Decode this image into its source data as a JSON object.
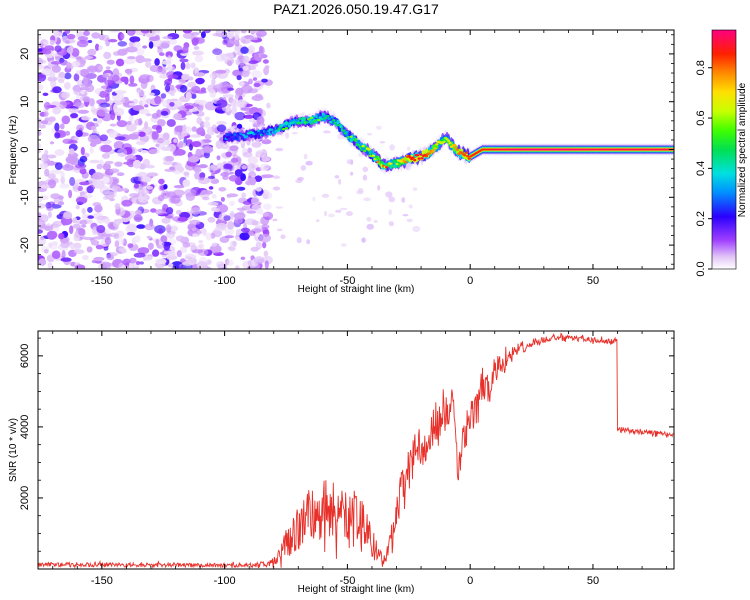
{
  "title": "PAZ1.2026.050.19.47.G17",
  "chart_data": [
    {
      "type": "heatmap",
      "name": "spectrogram",
      "xlabel": "Height of straight line (km)",
      "ylabel": "Frequency (Hz)",
      "xlim": [
        -176,
        83
      ],
      "ylim": [
        -25,
        25
      ],
      "xticks": [
        -150,
        -100,
        -50,
        0,
        50
      ],
      "yticks": [
        -20,
        -10,
        0,
        10,
        20
      ],
      "noise_region_x": [
        -176,
        -82
      ],
      "ridge": {
        "x": [
          -100,
          -90,
          -80,
          -75,
          -70,
          -65,
          -60,
          -55,
          -50,
          -45,
          -40,
          -35,
          -30,
          -25,
          -20,
          -15,
          -10,
          -5,
          0,
          5,
          10,
          20,
          30,
          40,
          50,
          60,
          70,
          83
        ],
        "freq": [
          2.5,
          3,
          4,
          5,
          6,
          6,
          7,
          6,
          3,
          1,
          -1,
          -3.5,
          -3,
          -2,
          -1.5,
          0,
          2.5,
          -0.5,
          -1.5,
          0,
          0,
          0,
          0,
          0,
          0,
          0,
          0,
          0
        ],
        "amplitude": [
          0.3,
          0.35,
          0.4,
          0.5,
          0.5,
          0.55,
          0.45,
          0.5,
          0.55,
          0.55,
          0.6,
          0.8,
          0.6,
          0.85,
          0.9,
          0.75,
          0.6,
          0.8,
          0.85,
          0.85,
          0.9,
          0.95,
          0.95,
          0.95,
          0.92,
          0.92,
          0.92,
          0.92
        ]
      },
      "colorbar": {
        "label": "Normalized spectral amplitude",
        "range": [
          0,
          0.95
        ],
        "ticks": [
          0.0,
          0.2,
          0.4,
          0.6,
          0.8
        ],
        "tick_labels": [
          "0.0",
          "0.2",
          "0.4",
          "0.6",
          "0.8"
        ]
      }
    },
    {
      "type": "line",
      "name": "snr",
      "xlabel": "Height of straight line (km)",
      "ylabel": "SNR (10 * v/v)",
      "xlim": [
        -176,
        83
      ],
      "ylim": [
        0,
        6700
      ],
      "xticks": [
        -150,
        -100,
        -50,
        0,
        50
      ],
      "yticks": [
        2000,
        4000,
        6000
      ],
      "color": "#e8302a",
      "series": [
        {
          "name": "SNR",
          "x": [
            -176,
            -160,
            -140,
            -120,
            -100,
            -90,
            -82,
            -78,
            -75,
            -70,
            -65,
            -60,
            -55,
            -50,
            -45,
            -40,
            -37,
            -35,
            -33,
            -30,
            -28,
            -25,
            -22,
            -20,
            -18,
            -15,
            -12,
            -10,
            -8,
            -7,
            -6,
            -5,
            -3,
            0,
            3,
            5,
            8,
            10,
            12,
            15,
            18,
            20,
            25,
            30,
            35,
            40,
            45,
            50,
            55,
            58,
            59.5,
            60,
            61,
            65,
            70,
            75,
            80,
            83
          ],
          "y": [
            130,
            120,
            110,
            115,
            105,
            110,
            150,
            300,
            700,
            1200,
            1500,
            1700,
            1600,
            1500,
            1300,
            700,
            400,
            250,
            600,
            1500,
            2200,
            2800,
            3300,
            3500,
            3300,
            3900,
            4100,
            4400,
            4500,
            5000,
            3600,
            2600,
            3600,
            4200,
            4500,
            5200,
            5000,
            5500,
            5700,
            5900,
            6050,
            6200,
            6350,
            6450,
            6500,
            6500,
            6470,
            6450,
            6430,
            6420,
            6400,
            3950,
            3900,
            3880,
            3850,
            3830,
            3800,
            3800
          ],
          "noise_amplitude": [
            60,
            60,
            60,
            60,
            60,
            60,
            80,
            200,
            400,
            700,
            800,
            900,
            900,
            900,
            800,
            500,
            200,
            150,
            300,
            500,
            600,
            600,
            600,
            500,
            500,
            600,
            600,
            500,
            400,
            300,
            300,
            300,
            400,
            500,
            500,
            500,
            400,
            350,
            300,
            250,
            200,
            180,
            120,
            100,
            90,
            80,
            80,
            80,
            80,
            80,
            80,
            80,
            70,
            70,
            70,
            70,
            70,
            70
          ]
        }
      ]
    }
  ]
}
